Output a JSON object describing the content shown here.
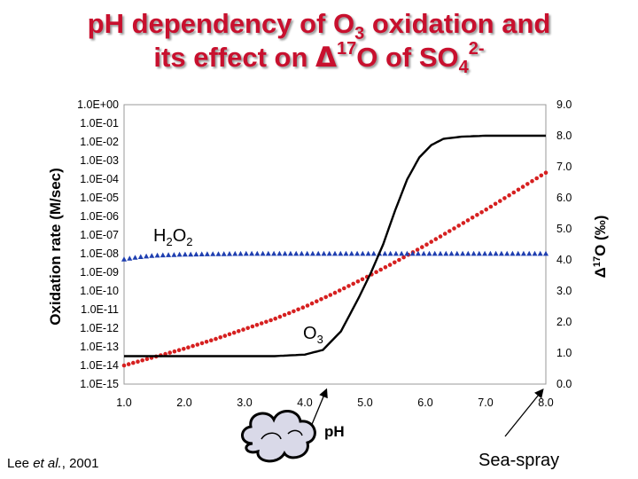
{
  "title": {
    "line1_prefix": "pH dependency of O",
    "line1_sub": "3",
    "line1_suffix": " oxidation and",
    "line2_prefix": "its effect on ",
    "line2_delta": "Δ",
    "line2_sup": "17",
    "line2_mid": "O of SO",
    "line2_sub": "4",
    "line2_sup2": "2-"
  },
  "citation": {
    "author": "Lee ",
    "etal": "et al.",
    "year": ", 2001"
  },
  "seaspray_label": "Sea-spray",
  "chart_data": {
    "type": "line",
    "xlabel": "pH",
    "ylabel_left": "Oxidation rate (M/sec)",
    "ylabel_right_delta": "Δ",
    "ylabel_right_sup": "17",
    "ylabel_right_rest": "O (‰)",
    "xlim": [
      1.0,
      8.0
    ],
    "x_ticks": [
      "1.0",
      "2.0",
      "3.0",
      "4.0",
      "5.0",
      "6.0",
      "7.0",
      "8.0"
    ],
    "y_left_ticks": [
      "1.0E-15",
      "1.0E-14",
      "1.0E-13",
      "1.0E-12",
      "1.0E-11",
      "1.0E-10",
      "1.0E-09",
      "1.0E-08",
      "1.0E-07",
      "1.0E-06",
      "1.0E-05",
      "1.0E-04",
      "1.0E-03",
      "1.0E-02",
      "1.0E-01",
      "1.0E+00"
    ],
    "y_left_log10_range": [
      -15,
      0
    ],
    "y_right_ticks": [
      "0.0",
      "1.0",
      "2.0",
      "3.0",
      "4.0",
      "5.0",
      "6.0",
      "7.0",
      "8.0",
      "9.0"
    ],
    "y_right_range": [
      0,
      9
    ],
    "series": [
      {
        "name": "O3",
        "label_main": "O",
        "label_sub": "3",
        "axis": "left",
        "style": "dotted",
        "color": "#d62020",
        "x": [
          1.0,
          1.5,
          2.0,
          2.5,
          3.0,
          3.5,
          4.0,
          4.5,
          5.0,
          5.5,
          6.0,
          6.5,
          7.0,
          7.5,
          8.0
        ],
        "log10_y": [
          -14.0,
          -13.55,
          -13.1,
          -12.6,
          -12.05,
          -11.5,
          -10.85,
          -10.1,
          -9.3,
          -8.45,
          -7.55,
          -6.6,
          -5.65,
          -4.65,
          -3.65
        ]
      },
      {
        "name": "H2O2",
        "label_main": "H",
        "label_sub1": "2",
        "label_mid": "O",
        "label_sub2": "2",
        "axis": "left",
        "style": "triangles",
        "color": "#1f3fb0",
        "x": [
          1.0,
          1.25,
          1.5,
          2.0,
          2.5,
          3.0,
          4.0,
          5.0,
          6.0,
          7.0,
          8.0
        ],
        "log10_y": [
          -8.3,
          -8.18,
          -8.1,
          -8.04,
          -8.02,
          -8.0,
          -8.0,
          -8.0,
          -8.0,
          -8.0,
          -8.0
        ]
      },
      {
        "name": "Δ17O",
        "axis": "right",
        "style": "solid",
        "color": "#000000",
        "x": [
          1.0,
          2.0,
          3.0,
          3.5,
          4.0,
          4.3,
          4.6,
          4.9,
          5.1,
          5.3,
          5.5,
          5.7,
          5.9,
          6.1,
          6.3,
          6.6,
          7.0,
          7.5,
          8.0
        ],
        "y": [
          0.9,
          0.9,
          0.9,
          0.9,
          0.95,
          1.1,
          1.7,
          2.8,
          3.6,
          4.5,
          5.6,
          6.6,
          7.3,
          7.7,
          7.9,
          7.97,
          8.0,
          8.0,
          8.0
        ]
      }
    ],
    "annotations": [
      {
        "text": "pH",
        "type": "xlabel"
      },
      {
        "text": "Sea-spray",
        "type": "arrow-label",
        "points_to_x": 8.0
      }
    ]
  }
}
